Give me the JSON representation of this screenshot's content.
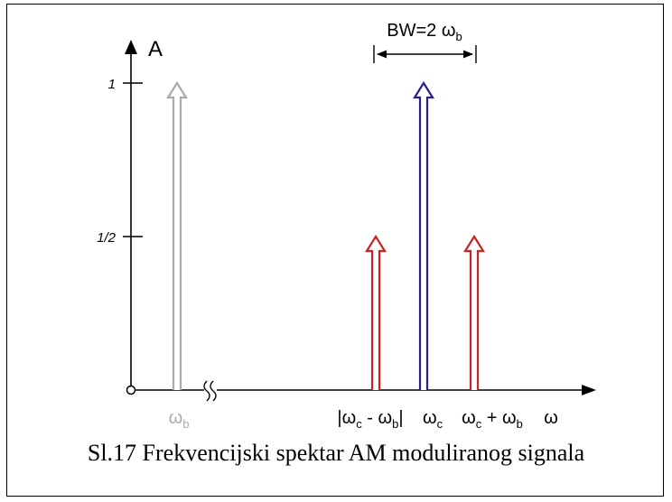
{
  "axes": {
    "y_label": "A",
    "x_label": "ω",
    "y_ticks": [
      "1",
      "1/2"
    ]
  },
  "bandwidth": {
    "label_main": "BW=2 ω",
    "label_sub": "b"
  },
  "components": [
    {
      "id": "baseband",
      "amplitude": 1,
      "color": "#aaaaaa",
      "label": "ω",
      "sub": "b"
    },
    {
      "id": "lower-sideband",
      "amplitude": 0.5,
      "color": "#cc2222",
      "label_parts": [
        "|ω",
        "c",
        " - ω",
        "b",
        "|"
      ]
    },
    {
      "id": "carrier",
      "amplitude": 1,
      "color": "#2a1f8a",
      "label": "ω",
      "sub": "c"
    },
    {
      "id": "upper-sideband",
      "amplitude": 0.5,
      "color": "#cc2222",
      "label_parts": [
        "ω",
        "c",
        " + ω",
        "b"
      ]
    }
  ],
  "caption": "Sl.17 Frekvencijski spektar AM moduliranog signala",
  "colors": {
    "axis": "#000000",
    "baseband": "#aaaaaa",
    "carrier": "#2a1f8a",
    "sideband": "#cc2222"
  }
}
